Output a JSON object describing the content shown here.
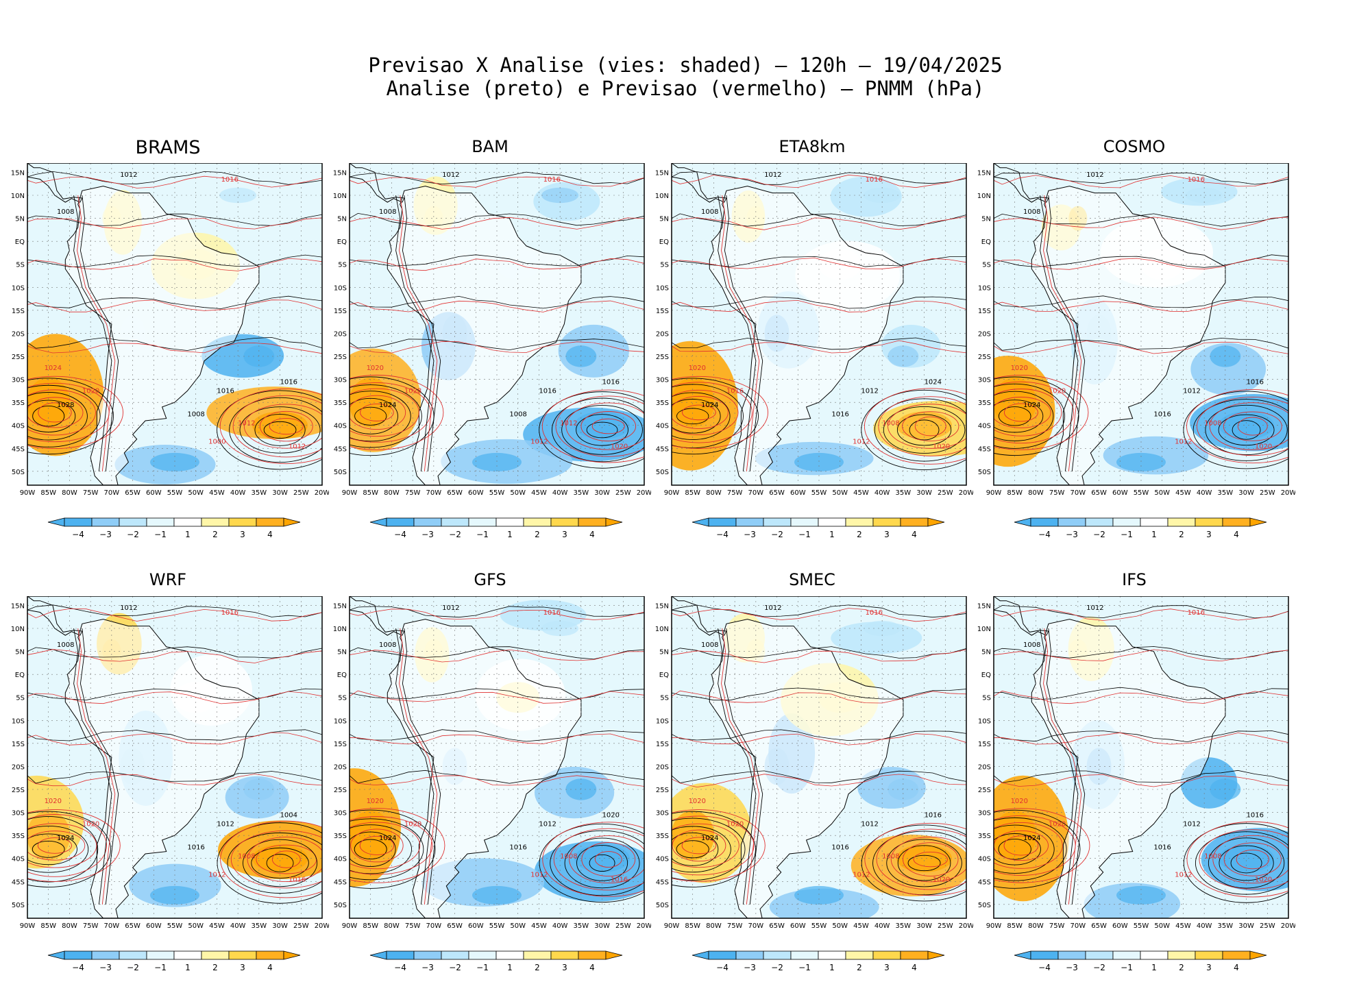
{
  "header": {
    "line1": "Previsao X Analise (vies: shaded) – 120h – 19/04/2025",
    "line2": "Analise (preto) e Previsao (vermelho) – PNMM (hPa)"
  },
  "axes": {
    "lat_labels": [
      "15N",
      "10N",
      "5N",
      "EQ",
      "5S",
      "10S",
      "15S",
      "20S",
      "25S",
      "30S",
      "35S",
      "40S",
      "45S",
      "50S"
    ],
    "lon_labels": [
      "90W",
      "85W",
      "80W",
      "75W",
      "70W",
      "65W",
      "60W",
      "55W",
      "50W",
      "45W",
      "40W",
      "35W",
      "30W",
      "25W",
      "20W"
    ]
  },
  "colorbar": {
    "labels": [
      "−4",
      "−3",
      "−2",
      "−1",
      "1",
      "2",
      "3",
      "4"
    ],
    "colors": [
      "#4db2f0",
      "#8fcdf7",
      "#bde7fb",
      "#e5f8fd",
      "#ffffff",
      "#fff6a8",
      "#ffd84d",
      "#ffb020",
      "#ffa500"
    ]
  },
  "colors": {
    "analysis_contour": "#000000",
    "forecast_contour": "#e03030",
    "land_outline": "#000000"
  },
  "panels": [
    {
      "title": "BRAMS",
      "contours": [
        "1012",
        "1016",
        "1008",
        "1024",
        "1028",
        "1020",
        "1016",
        "1012",
        "1008",
        "1000",
        "1016",
        "1012"
      ]
    },
    {
      "title": "BAM",
      "contours": [
        "1012",
        "1016",
        "1008",
        "1020",
        "1024",
        "1028",
        "1016",
        "1012",
        "1008",
        "1012",
        "1016",
        "1020"
      ]
    },
    {
      "title": "ETA8km",
      "contours": [
        "1012",
        "1016",
        "1008",
        "1020",
        "1024",
        "1016",
        "1012",
        "1008",
        "1016",
        "1012",
        "1024",
        "1020"
      ]
    },
    {
      "title": "COSMO",
      "contours": [
        "1012",
        "1016",
        "1008",
        "1020",
        "1024",
        "1020",
        "1012",
        "1008",
        "1016",
        "1012",
        "1016",
        "1020"
      ]
    },
    {
      "title": "WRF",
      "contours": [
        "1012",
        "1016",
        "1008",
        "1020",
        "1024",
        "1020",
        "1012",
        "1008",
        "1016",
        "1012",
        "1004",
        "1016"
      ]
    },
    {
      "title": "GFS",
      "contours": [
        "1012",
        "1016",
        "1008",
        "1020",
        "1024",
        "1020",
        "1012",
        "1008",
        "1016",
        "1012",
        "1020",
        "1016"
      ]
    },
    {
      "title": "SMEC",
      "contours": [
        "1012",
        "1016",
        "1008",
        "1020",
        "1024",
        "1020",
        "1012",
        "1008",
        "1016",
        "1012",
        "1016",
        "1020"
      ]
    },
    {
      "title": "IFS",
      "contours": [
        "1012",
        "1016",
        "1008",
        "1020",
        "1024",
        "1020",
        "1012",
        "1008",
        "1016",
        "1012",
        "1016",
        "1020"
      ]
    }
  ]
}
